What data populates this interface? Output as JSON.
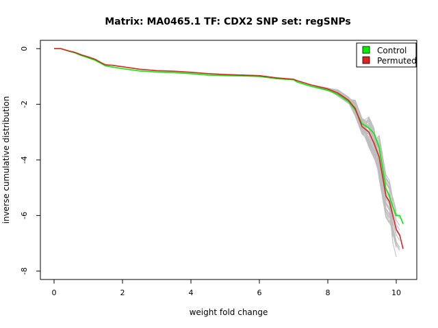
{
  "chart_data": {
    "type": "line",
    "title": "Matrix: MA0465.1 TF: CDX2 SNP set: regSNPs",
    "xlabel": "weight fold change",
    "ylabel": "inverse cumulative distribution",
    "xlim": [
      -0.4,
      10.6
    ],
    "ylim": [
      -8.3,
      0.3
    ],
    "xticks": [
      0,
      2,
      4,
      6,
      8,
      10
    ],
    "yticks": [
      0,
      -2,
      -4,
      -6,
      -8
    ],
    "grid": false,
    "legend_position": "top-right",
    "background_series": {
      "color": "#bebebe",
      "count": 40,
      "spread_y": [
        0.0,
        0.05,
        0.12,
        0.3,
        0.55,
        0.8,
        1.0,
        1.2
      ]
    },
    "series": [
      {
        "name": "Control",
        "color": "#00ee00",
        "x": [
          0.0,
          0.2,
          0.4,
          0.6,
          0.8,
          1.0,
          1.2,
          1.4,
          1.5,
          1.7,
          2.0,
          2.5,
          3.0,
          3.5,
          4.0,
          4.5,
          5.0,
          5.5,
          6.0,
          6.5,
          7.0,
          7.1,
          7.5,
          8.0,
          8.3,
          8.6,
          8.8,
          9.0,
          9.2,
          9.35,
          9.5,
          9.6,
          9.7,
          9.8,
          9.9,
          10.0,
          10.1,
          10.2
        ],
        "y": [
          0.0,
          0.0,
          -0.08,
          -0.15,
          -0.25,
          -0.33,
          -0.42,
          -0.55,
          -0.62,
          -0.66,
          -0.72,
          -0.8,
          -0.84,
          -0.86,
          -0.9,
          -0.95,
          -0.97,
          -0.98,
          -1.0,
          -1.08,
          -1.12,
          -1.2,
          -1.35,
          -1.5,
          -1.65,
          -1.9,
          -2.2,
          -2.7,
          -2.85,
          -3.05,
          -3.55,
          -4.3,
          -5.05,
          -5.3,
          -5.7,
          -6.0,
          -6.0,
          -6.3
        ]
      },
      {
        "name": "Permuted",
        "color": "#dd2222",
        "x": [
          0.0,
          0.2,
          0.4,
          0.6,
          0.8,
          1.0,
          1.2,
          1.4,
          1.5,
          1.7,
          2.0,
          2.5,
          3.0,
          3.5,
          4.0,
          4.5,
          5.0,
          5.5,
          6.0,
          6.5,
          7.0,
          7.1,
          7.5,
          8.0,
          8.3,
          8.6,
          8.8,
          9.0,
          9.2,
          9.35,
          9.5,
          9.6,
          9.7,
          9.8,
          9.9,
          10.0,
          10.1,
          10.2
        ],
        "y": [
          0.0,
          0.0,
          -0.07,
          -0.13,
          -0.22,
          -0.3,
          -0.38,
          -0.52,
          -0.58,
          -0.6,
          -0.65,
          -0.74,
          -0.79,
          -0.81,
          -0.85,
          -0.9,
          -0.93,
          -0.95,
          -0.97,
          -1.05,
          -1.1,
          -1.15,
          -1.3,
          -1.45,
          -1.6,
          -1.85,
          -2.15,
          -2.8,
          -3.0,
          -3.4,
          -3.9,
          -4.6,
          -5.3,
          -5.5,
          -6.0,
          -6.5,
          -6.7,
          -7.2
        ]
      }
    ]
  }
}
